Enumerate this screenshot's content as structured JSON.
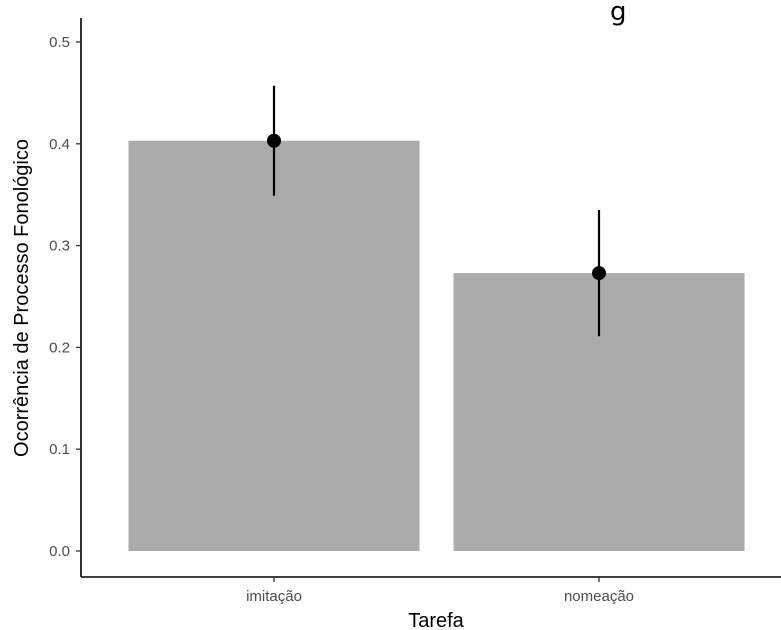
{
  "chart_data": {
    "type": "bar",
    "title_fragment": "g",
    "xlabel": "Tarefa",
    "ylabel": "Ocorrência de Processo Fonológico",
    "categories": [
      "imitação",
      "nomeação"
    ],
    "values": [
      0.403,
      0.273
    ],
    "error_low": [
      0.349,
      0.211
    ],
    "error_high": [
      0.457,
      0.335
    ],
    "ylim": [
      0,
      0.5
    ],
    "yticks": [
      "0.0",
      "0.1",
      "0.2",
      "0.3",
      "0.4",
      "0.5"
    ],
    "grid": false,
    "legend": "none",
    "bar_color": "#ababab",
    "point_color": "#000000"
  }
}
